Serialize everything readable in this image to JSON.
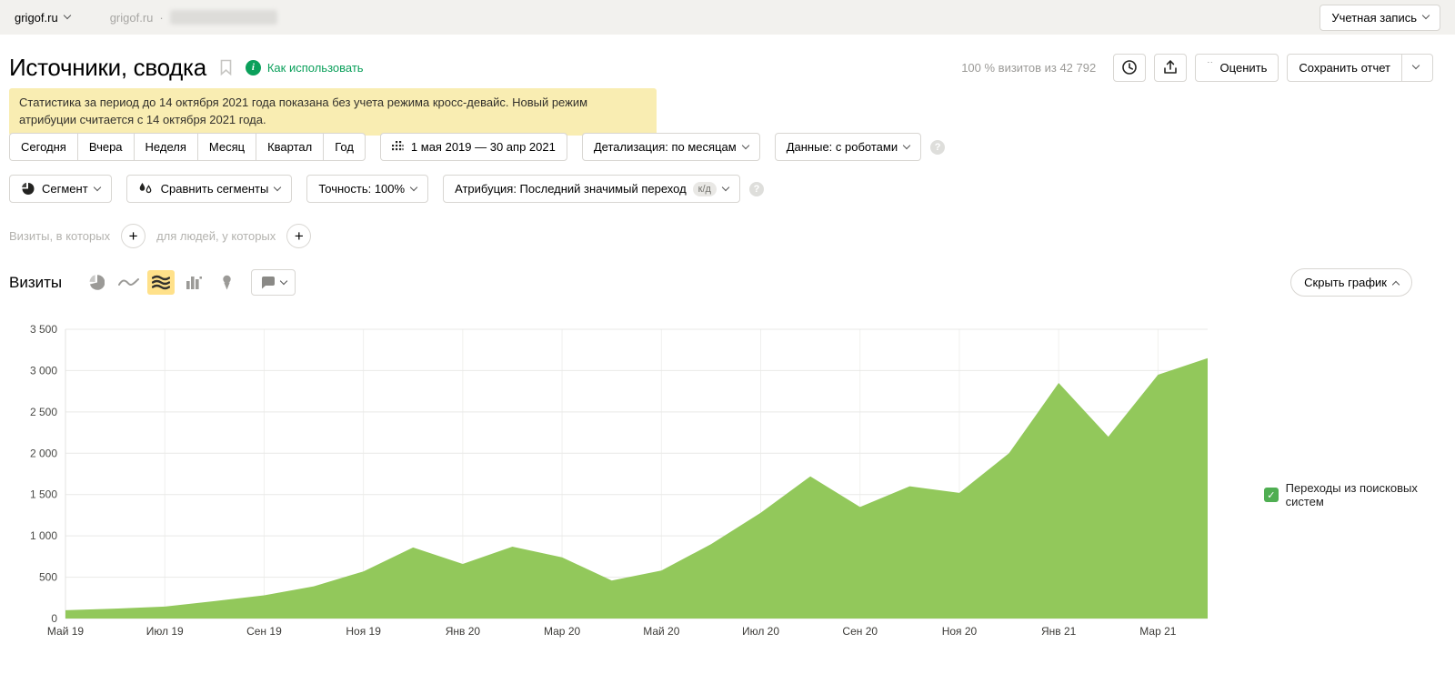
{
  "topbar": {
    "counter_name": "grigof.ru",
    "breadcrumb_site": "grigof.ru",
    "breadcrumb_separator": "·",
    "account_label": "Учетная запись"
  },
  "header": {
    "title": "Источники, сводка",
    "how_to_use": "Как использовать",
    "info_glyph": "i",
    "visits_sample": "100 % визитов из 42 792",
    "rate_label": "Оценить",
    "rate_glyph": "”",
    "save_report_label": "Сохранить отчет"
  },
  "banner": {
    "text": "Статистика за период до 14 октября 2021 года показана без учета режима кросс-девайс. Новый режим атрибуции считается с 14 октября 2021 года."
  },
  "filters": {
    "period_tabs": [
      "Сегодня",
      "Вчера",
      "Неделя",
      "Месяц",
      "Квартал",
      "Год"
    ],
    "date_range": "1 мая 2019 — 30 апр 2021",
    "detail_label": "Детализация: по месяцам",
    "data_label": "Данные: с роботами",
    "help_glyph": "?"
  },
  "segment_row": {
    "segment_label": "Сегмент",
    "compare_label": "Сравнить сегменты",
    "accuracy_label": "Точность: 100%",
    "attribution_label": "Атрибуция: Последний значимый переход",
    "attribution_badge": "к/д",
    "help_glyph": "?"
  },
  "builder": {
    "visits_label": "Визиты, в которых",
    "people_label": "для людей, у которых",
    "add_glyph": "+"
  },
  "chart_header": {
    "title": "Визиты",
    "hide_chart_label": "Скрыть график"
  },
  "legend": {
    "label": "Переходы из поисковых систем",
    "check_glyph": "✓",
    "color": "#4fae52"
  },
  "chart_data": {
    "type": "area",
    "title": "Визиты",
    "x": [
      "Май 19",
      "Июн 19",
      "Июл 19",
      "Авг 19",
      "Сен 19",
      "Окт 19",
      "Ноя 19",
      "Дек 19",
      "Янв 20",
      "Фев 20",
      "Мар 20",
      "Апр 20",
      "Май 20",
      "Июн 20",
      "Июл 20",
      "Авг 20",
      "Сен 20",
      "Окт 20",
      "Ноя 20",
      "Дек 20",
      "Янв 21",
      "Фев 21",
      "Мар 21",
      "Апр 21"
    ],
    "series": [
      {
        "name": "Переходы из поисковых систем",
        "color": "#92c85b",
        "values": [
          100,
          120,
          145,
          210,
          280,
          390,
          570,
          860,
          660,
          870,
          740,
          460,
          580,
          900,
          1280,
          1720,
          1350,
          1600,
          1520,
          2000,
          2850,
          2200,
          2950,
          3150
        ]
      }
    ],
    "ylim": [
      0,
      3500
    ],
    "y_ticks": [
      0,
      500,
      1000,
      1500,
      2000,
      2500,
      3000,
      3500
    ],
    "y_tick_labels": [
      "0",
      "500",
      "1 000",
      "1 500",
      "2 000",
      "2 500",
      "3 000",
      "3 500"
    ],
    "x_tick_labels": [
      "Май 19",
      "Июл 19",
      "Сен 19",
      "Ноя 19",
      "Янв 20",
      "Мар 20",
      "Май 20",
      "Июл 20",
      "Сен 20",
      "Ноя 20",
      "Янв 21",
      "Мар 21"
    ],
    "grid": true,
    "legend_position": "right"
  }
}
